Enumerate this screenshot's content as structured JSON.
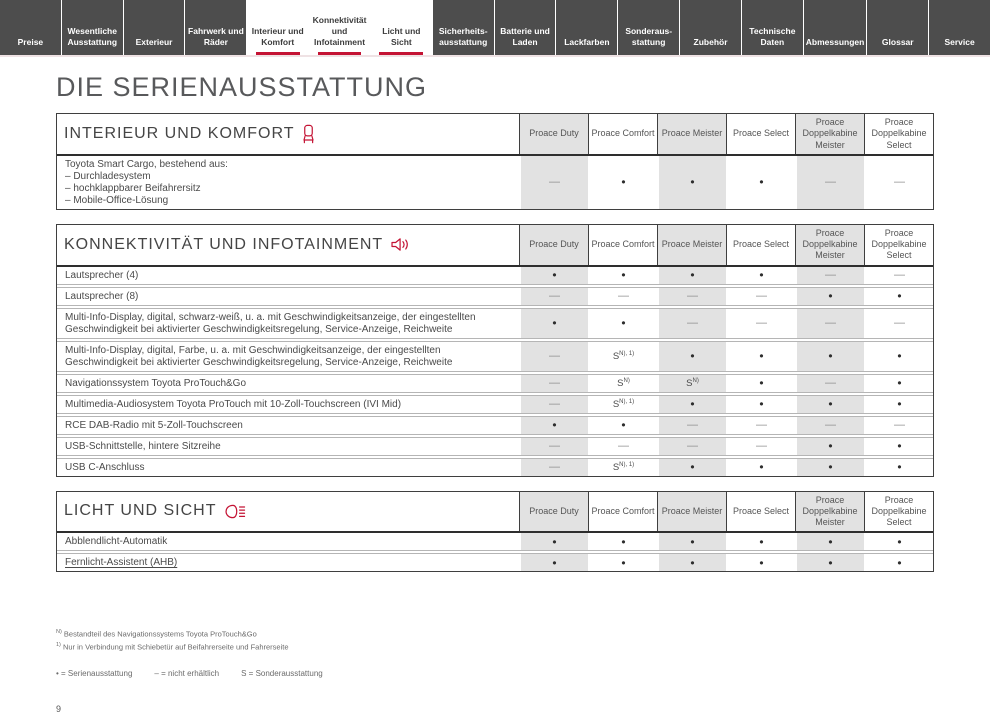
{
  "nav": {
    "tabs": [
      {
        "label": "Preise",
        "active": false
      },
      {
        "label": "Wesentliche Ausstattung",
        "active": false
      },
      {
        "label": "Exterieur",
        "active": false
      },
      {
        "label": "Fahrwerk und Räder",
        "active": false
      },
      {
        "label": "Interieur und Komfort",
        "active": true
      },
      {
        "label": "Konnektivität und Infotainment",
        "active": true
      },
      {
        "label": "Licht und Sicht",
        "active": true
      },
      {
        "label": "Sicherheits-ausstattung",
        "active": false
      },
      {
        "label": "Batterie und Laden",
        "active": false
      },
      {
        "label": "Lackfarben",
        "active": false
      },
      {
        "label": "Sonderaus-stattung",
        "active": false
      },
      {
        "label": "Zubehör",
        "active": false
      },
      {
        "label": "Technische Daten",
        "active": false
      },
      {
        "label": "Abmessungen",
        "active": false
      },
      {
        "label": "Glossar",
        "active": false
      },
      {
        "label": "Service",
        "active": false
      }
    ]
  },
  "page": {
    "title": "DIE SERIENAUSSTATTUNG",
    "number": "9"
  },
  "table_columns": [
    "Proace Duty",
    "Proace Comfort",
    "Proace Meister",
    "Proace Select",
    "Proace Doppelkabine Meister",
    "Proace Doppelkabine Select"
  ],
  "sections": [
    {
      "title": "INTERIEUR UND KOMFORT",
      "icon": "seat-icon",
      "rows": [
        {
          "feature_lines": [
            "Toyota Smart Cargo, bestehend aus:",
            "– Durchladesystem",
            "– hochklappbarer Beifahrersitz",
            "– Mobile-Office-Lösung"
          ],
          "values": [
            "—",
            "•",
            "•",
            "•",
            "—",
            "—"
          ]
        }
      ]
    },
    {
      "title": "KONNEKTIVITÄT UND INFOTAINMENT",
      "icon": "speaker-icon",
      "rows": [
        {
          "feature_lines": [
            "Lautsprecher (4)"
          ],
          "values": [
            "•",
            "•",
            "•",
            "•",
            "—",
            "—"
          ]
        },
        {
          "feature_lines": [
            "Lautsprecher (8)"
          ],
          "values": [
            "—",
            "—",
            "—",
            "—",
            "•",
            "•"
          ]
        },
        {
          "feature_lines": [
            "Multi-Info-Display, digital, schwarz-weiß, u. a. mit Geschwindigkeitsanzeige, der eingestellten Geschwindigkeit bei aktivierter Geschwindigkeitsregelung, Service-Anzeige, Reichweite"
          ],
          "values": [
            "•",
            "•",
            "—",
            "—",
            "—",
            "—"
          ]
        },
        {
          "feature_lines": [
            "Multi-Info-Display, digital, Farbe, u. a. mit Geschwindigkeitsanzeige, der eingestellten Geschwindigkeit bei aktivierter Geschwindigkeitsregelung, Service-Anzeige, Reichweite"
          ],
          "values": [
            "—",
            "S^N), 1)",
            "•",
            "•",
            "•",
            "•"
          ]
        },
        {
          "feature_lines": [
            "Navigationssystem Toyota ProTouch&Go"
          ],
          "values": [
            "—",
            "S^N)",
            "S^N)",
            "•",
            "—",
            "•"
          ]
        },
        {
          "feature_lines": [
            "Multimedia-Audiosystem Toyota ProTouch mit 10-Zoll-Touchscreen (IVI Mid)"
          ],
          "values": [
            "—",
            "S^N), 1)",
            "•",
            "•",
            "•",
            "•"
          ]
        },
        {
          "feature_lines": [
            "RCE DAB-Radio mit 5-Zoll-Touchscreen"
          ],
          "values": [
            "•",
            "•",
            "—",
            "—",
            "—",
            "—"
          ]
        },
        {
          "feature_lines": [
            "USB-Schnittstelle, hintere Sitzreihe"
          ],
          "values": [
            "—",
            "—",
            "—",
            "—",
            "•",
            "•"
          ]
        },
        {
          "feature_lines": [
            "USB C-Anschluss"
          ],
          "values": [
            "—",
            "S^N), 1)",
            "•",
            "•",
            "•",
            "•"
          ]
        }
      ]
    },
    {
      "title": "LICHT UND SICHT",
      "icon": "headlight-icon",
      "rows": [
        {
          "feature_lines": [
            "Abblendlicht-Automatik"
          ],
          "values": [
            "•",
            "•",
            "•",
            "•",
            "•",
            "•"
          ]
        },
        {
          "feature_lines": [
            "Fernlicht-Assistent (AHB)"
          ],
          "underline": true,
          "values": [
            "•",
            "•",
            "•",
            "•",
            "•",
            "•"
          ]
        }
      ]
    }
  ],
  "footnotes": [
    {
      "sup": "N)",
      "text": "Bestandteil des Navigationssystems Toyota ProTouch&Go"
    },
    {
      "sup": "1)",
      "text": "Nur in Verbindung mit Schiebetür auf Beifahrerseite und Fahrerseite"
    }
  ],
  "legend": [
    "• = Serienausstattung",
    "– = nicht erhältlich",
    "S = Sonderausstattung"
  ],
  "colors": {
    "accent": "#c41334",
    "tab_dark": "#4d4d4d",
    "column_shade": "#e2e2e2"
  }
}
